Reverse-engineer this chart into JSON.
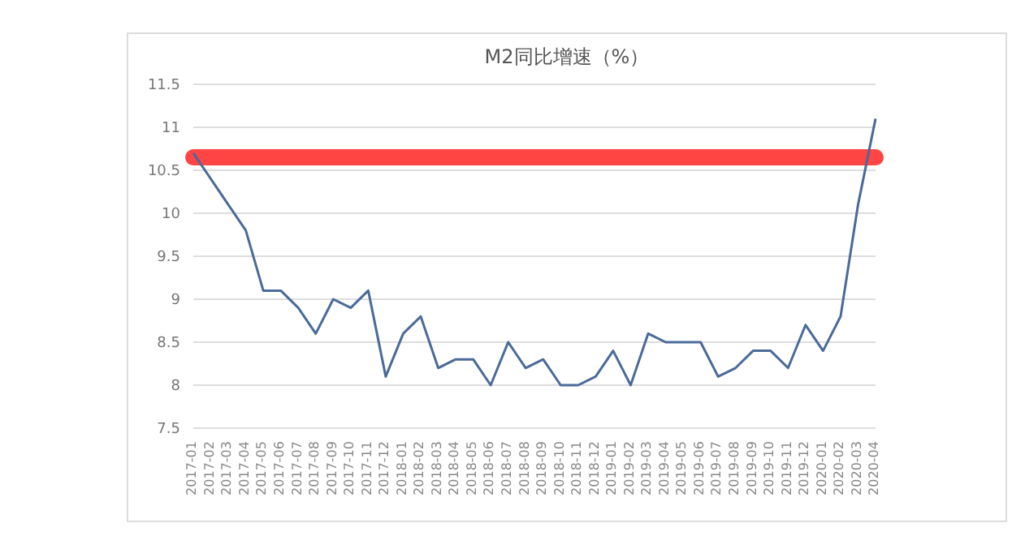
{
  "chart_data": {
    "type": "line",
    "title": "M2同比增速（%）",
    "categories": [
      "2017-01",
      "2017-02",
      "2017-03",
      "2017-04",
      "2017-05",
      "2017-06",
      "2017-07",
      "2017-08",
      "2017-09",
      "2017-10",
      "2017-11",
      "2017-12",
      "2018-01",
      "2018-02",
      "2018-03",
      "2018-04",
      "2018-05",
      "2018-06",
      "2018-07",
      "2018-08",
      "2018-09",
      "2018-10",
      "2018-11",
      "2018-12",
      "2019-01",
      "2019-02",
      "2019-03",
      "2019-04",
      "2019-05",
      "2019-06",
      "2019-07",
      "2019-08",
      "2019-09",
      "2019-10",
      "2019-11",
      "2019-12",
      "2020-01",
      "2020-02",
      "2020-03",
      "2020-04"
    ],
    "series": [
      {
        "color": "#4a6a9a",
        "values": [
          10.7,
          10.4,
          10.1,
          9.8,
          9.1,
          9.1,
          8.9,
          8.6,
          9.0,
          8.9,
          9.1,
          8.1,
          8.6,
          8.8,
          8.2,
          8.3,
          8.3,
          8.0,
          8.5,
          8.2,
          8.3,
          8.0,
          8.0,
          8.1,
          8.4,
          8.0,
          8.6,
          8.5,
          8.5,
          8.5,
          8.1,
          8.2,
          8.4,
          8.4,
          8.2,
          8.7,
          8.4,
          8.8,
          10.1,
          11.1
        ]
      }
    ],
    "ylim": [
      7.5,
      11.5
    ],
    "yticks": [
      7.5,
      8,
      8.5,
      9,
      9.5,
      10,
      10.5,
      11,
      11.5
    ],
    "ref_lines": [
      {
        "axis": "y",
        "value": 10.65,
        "color": "#ff4444"
      }
    ],
    "grid": "y",
    "marker": "none",
    "line_style": "solid"
  }
}
